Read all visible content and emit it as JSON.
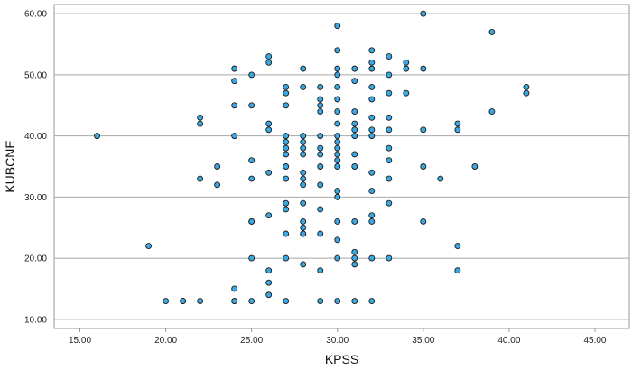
{
  "chart_data": {
    "type": "scatter",
    "title": "",
    "xlabel": "KPSS",
    "ylabel": "KUBCNE",
    "xlim": [
      13.5,
      47.0
    ],
    "ylim": [
      8.5,
      61.5
    ],
    "grid": "horizontal",
    "x_ticks": [
      15,
      20,
      25,
      30,
      35,
      40,
      45
    ],
    "y_ticks": [
      10,
      20,
      30,
      40,
      50,
      60
    ],
    "x_tick_labels": [
      "15.00",
      "20.00",
      "25.00",
      "30.00",
      "35.00",
      "40.00",
      "45.00"
    ],
    "y_tick_labels": [
      "10.00",
      "20.00",
      "30.00",
      "40.00",
      "50.00",
      "60.00"
    ],
    "marker_fill": "#3aa8e4",
    "marker_edge": "#1a1a1a",
    "points": [
      [
        16,
        40
      ],
      [
        19,
        22
      ],
      [
        20,
        13
      ],
      [
        21,
        13
      ],
      [
        21,
        13
      ],
      [
        22,
        43
      ],
      [
        22,
        42
      ],
      [
        22,
        33
      ],
      [
        22,
        13
      ],
      [
        23,
        35
      ],
      [
        23,
        32
      ],
      [
        24,
        51
      ],
      [
        24,
        49
      ],
      [
        24,
        45
      ],
      [
        24,
        40
      ],
      [
        24,
        15
      ],
      [
        24,
        13
      ],
      [
        24,
        13
      ],
      [
        25,
        50
      ],
      [
        25,
        45
      ],
      [
        25,
        36
      ],
      [
        25,
        33
      ],
      [
        25,
        26
      ],
      [
        25,
        26
      ],
      [
        25,
        20
      ],
      [
        25,
        13
      ],
      [
        26,
        53
      ],
      [
        26,
        52
      ],
      [
        26,
        42
      ],
      [
        26,
        41
      ],
      [
        26,
        34
      ],
      [
        26,
        27
      ],
      [
        26,
        18
      ],
      [
        26,
        16
      ],
      [
        26,
        14
      ],
      [
        27,
        48
      ],
      [
        27,
        47
      ],
      [
        27,
        45
      ],
      [
        27,
        40
      ],
      [
        27,
        39
      ],
      [
        27,
        38
      ],
      [
        27,
        37
      ],
      [
        27,
        35
      ],
      [
        27,
        33
      ],
      [
        27,
        29
      ],
      [
        27,
        28
      ],
      [
        27,
        24
      ],
      [
        27,
        20
      ],
      [
        27,
        13
      ],
      [
        28,
        51
      ],
      [
        28,
        48
      ],
      [
        28,
        40
      ],
      [
        28,
        39
      ],
      [
        28,
        38
      ],
      [
        28,
        37
      ],
      [
        28,
        34
      ],
      [
        28,
        33
      ],
      [
        28,
        32
      ],
      [
        28,
        29
      ],
      [
        28,
        26
      ],
      [
        28,
        25
      ],
      [
        28,
        24
      ],
      [
        28,
        24
      ],
      [
        28,
        19
      ],
      [
        29,
        48
      ],
      [
        29,
        46
      ],
      [
        29,
        45
      ],
      [
        29,
        44
      ],
      [
        29,
        40
      ],
      [
        29,
        38
      ],
      [
        29,
        37
      ],
      [
        29,
        35
      ],
      [
        29,
        32
      ],
      [
        29,
        28
      ],
      [
        29,
        24
      ],
      [
        29,
        18
      ],
      [
        29,
        13
      ],
      [
        30,
        58
      ],
      [
        30,
        54
      ],
      [
        30,
        51
      ],
      [
        30,
        50
      ],
      [
        30,
        48
      ],
      [
        30,
        46
      ],
      [
        30,
        44
      ],
      [
        30,
        42
      ],
      [
        30,
        40
      ],
      [
        30,
        39
      ],
      [
        30,
        38
      ],
      [
        30,
        37
      ],
      [
        30,
        36
      ],
      [
        30,
        35
      ],
      [
        30,
        31
      ],
      [
        30,
        30
      ],
      [
        30,
        26
      ],
      [
        30,
        23
      ],
      [
        30,
        20
      ],
      [
        30,
        13
      ],
      [
        31,
        51
      ],
      [
        31,
        49
      ],
      [
        31,
        44
      ],
      [
        31,
        42
      ],
      [
        31,
        41
      ],
      [
        31,
        40
      ],
      [
        31,
        37
      ],
      [
        31,
        35
      ],
      [
        31,
        26
      ],
      [
        31,
        21
      ],
      [
        31,
        20
      ],
      [
        31,
        19
      ],
      [
        31,
        13
      ],
      [
        32,
        54
      ],
      [
        32,
        52
      ],
      [
        32,
        51
      ],
      [
        32,
        48
      ],
      [
        32,
        46
      ],
      [
        32,
        43
      ],
      [
        32,
        41
      ],
      [
        32,
        40
      ],
      [
        32,
        34
      ],
      [
        32,
        31
      ],
      [
        32,
        27
      ],
      [
        32,
        26
      ],
      [
        32,
        20
      ],
      [
        32,
        13
      ],
      [
        33,
        53
      ],
      [
        33,
        50
      ],
      [
        33,
        47
      ],
      [
        33,
        43
      ],
      [
        33,
        41
      ],
      [
        33,
        38
      ],
      [
        33,
        36
      ],
      [
        33,
        33
      ],
      [
        33,
        29
      ],
      [
        33,
        20
      ],
      [
        34,
        52
      ],
      [
        34,
        51
      ],
      [
        34,
        47
      ],
      [
        35,
        60
      ],
      [
        35,
        51
      ],
      [
        35,
        41
      ],
      [
        35,
        35
      ],
      [
        35,
        26
      ],
      [
        36,
        33
      ],
      [
        37,
        42
      ],
      [
        37,
        41
      ],
      [
        37,
        22
      ],
      [
        37,
        18
      ],
      [
        38,
        35
      ],
      [
        39,
        57
      ],
      [
        39,
        44
      ],
      [
        41,
        48
      ],
      [
        41,
        47
      ]
    ]
  }
}
